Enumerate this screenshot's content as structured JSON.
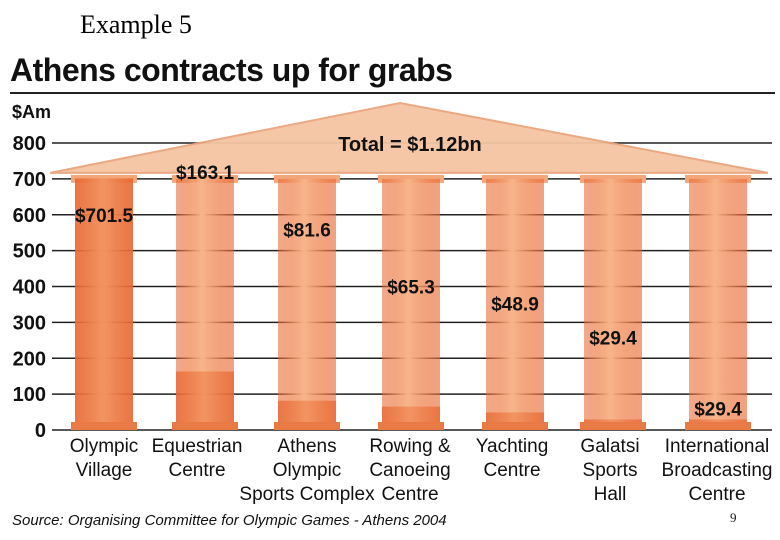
{
  "slide": {
    "example_label": "Example 5",
    "page_number": "9",
    "source": "Source: Organising Committee for Olympic Games - Athens 2004"
  },
  "colors": {
    "column_light": "#f7b58a",
    "column_dark": "#e8652f",
    "roof": "#f5c5a3",
    "gridline": "#222222"
  },
  "chart_data": {
    "type": "bar",
    "title": "Athens contracts up for grabs",
    "ylabel": "$Am",
    "xlabel": "",
    "ylim": [
      0,
      800
    ],
    "yticks": [
      0,
      100,
      200,
      300,
      400,
      500,
      600,
      700,
      800
    ],
    "annotation": "Total = $1.12bn",
    "categories": [
      [
        "Olympic",
        "Village"
      ],
      [
        "Equestrian",
        "Centre"
      ],
      [
        "Athens",
        "Olympic",
        "Sports Complex"
      ],
      [
        "Rowing &",
        "Canoeing",
        "Centre"
      ],
      [
        "Yachting",
        "Centre"
      ],
      [
        "Galatsi",
        "Sports",
        "Hall"
      ],
      [
        "International",
        "Broadcasting",
        "Centre"
      ]
    ],
    "values": [
      701.5,
      163.1,
      81.6,
      65.3,
      48.9,
      29.4,
      29.4
    ],
    "value_labels": [
      "$701.5",
      "$163.1",
      "$81.6",
      "$65.3",
      "$48.9",
      "$29.4",
      "$29.4"
    ]
  }
}
